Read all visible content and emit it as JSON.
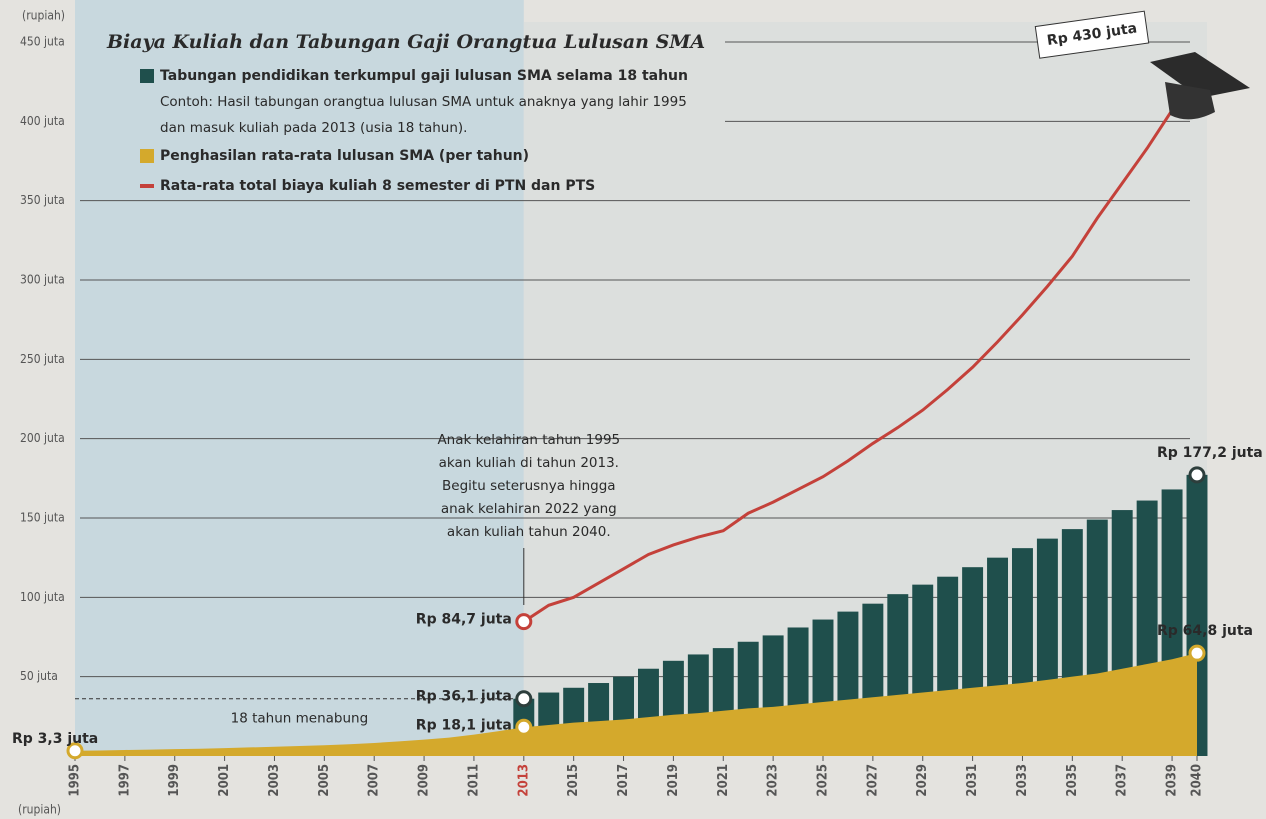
{
  "chart_data": {
    "type": "bar-area-line",
    "title": "Biaya Kuliah dan Tabungan Gaji Orangtua Lulusan SMA",
    "ylabel": "(rupiah)",
    "legend_note": [
      "Contoh: Hasil tabungan orangtua lulusan SMA untuk anaknya yang lahir 1995",
      "dan masuk kuliah pada 2013 (usia 18 tahun)."
    ],
    "x": [
      1995,
      1996,
      1997,
      1998,
      1999,
      2000,
      2001,
      2002,
      2003,
      2004,
      2005,
      2006,
      2007,
      2008,
      2009,
      2010,
      2011,
      2012,
      2013,
      2014,
      2015,
      2016,
      2017,
      2018,
      2019,
      2020,
      2021,
      2022,
      2023,
      2024,
      2025,
      2026,
      2027,
      2028,
      2029,
      2030,
      2031,
      2032,
      2033,
      2034,
      2035,
      2036,
      2037,
      2038,
      2039,
      2040
    ],
    "xlim": [
      1995,
      2040
    ],
    "xticks": [
      1995,
      1997,
      1999,
      2001,
      2003,
      2005,
      2007,
      2009,
      2011,
      2013,
      2015,
      2017,
      2019,
      2021,
      2023,
      2025,
      2027,
      2029,
      2031,
      2033,
      2035,
      2037,
      2039,
      2040
    ],
    "ylim": [
      0,
      450
    ],
    "yticks": [
      {
        "value": 50,
        "label": "50 juta"
      },
      {
        "value": 100,
        "label": "100 juta"
      },
      {
        "value": 150,
        "label": "150 juta"
      },
      {
        "value": 200,
        "label": "200 juta"
      },
      {
        "value": 250,
        "label": "250 juta"
      },
      {
        "value": 300,
        "label": "300 juta"
      },
      {
        "value": 350,
        "label": "350 juta"
      },
      {
        "value": 400,
        "label": "400 juta"
      },
      {
        "value": 450,
        "label": "450 juta"
      }
    ],
    "grid": true,
    "series": [
      {
        "name": "Tabungan pendidikan terkumpul gaji lulusan SMA selama 18 tahun",
        "kind": "bar",
        "color": "#1f4f4c",
        "values": [
          null,
          null,
          null,
          null,
          null,
          null,
          null,
          null,
          null,
          null,
          null,
          null,
          null,
          null,
          null,
          null,
          null,
          null,
          36.1,
          40,
          43,
          46,
          50,
          55,
          60,
          64,
          68,
          72,
          76,
          81,
          86,
          91,
          96,
          102,
          108,
          113,
          119,
          125,
          131,
          137,
          143,
          149,
          155,
          161,
          168,
          177.2
        ],
        "value_labels": [
          null,
          null,
          null,
          null,
          null,
          null,
          null,
          null,
          null,
          null,
          null,
          null,
          null,
          null,
          null,
          null,
          null,
          null,
          "Rp 36,1 juta",
          null,
          null,
          null,
          null,
          null,
          null,
          null,
          null,
          null,
          null,
          null,
          null,
          null,
          null,
          null,
          null,
          null,
          null,
          null,
          null,
          null,
          null,
          null,
          null,
          null,
          null,
          "Rp 177,2 juta"
        ]
      },
      {
        "name": "Penghasilan rata-rata lulusan SMA (per tahun)",
        "kind": "area",
        "color": "#d4a92c",
        "values": [
          3.3,
          3.5,
          3.8,
          4,
          4.3,
          4.6,
          5,
          5.4,
          5.8,
          6.3,
          6.8,
          7.4,
          8.2,
          9.2,
          10.3,
          11.6,
          13.5,
          15.7,
          18.1,
          19.5,
          21,
          22,
          23,
          24.5,
          26,
          27,
          28.5,
          30,
          31,
          32.5,
          34,
          35.5,
          37,
          38.5,
          40,
          41.5,
          43,
          44.5,
          46,
          48,
          50,
          52,
          55,
          58,
          61,
          64.8
        ],
        "value_labels": [
          "Rp 3,3 juta",
          null,
          null,
          null,
          null,
          null,
          null,
          null,
          null,
          null,
          null,
          null,
          null,
          null,
          null,
          null,
          null,
          null,
          "Rp 18,1 juta",
          null,
          null,
          null,
          null,
          null,
          null,
          null,
          null,
          null,
          null,
          null,
          null,
          null,
          null,
          null,
          null,
          null,
          null,
          null,
          null,
          null,
          null,
          null,
          null,
          null,
          null,
          "Rp 64,8 juta"
        ]
      },
      {
        "name": "Rata-rata total biaya kuliah 8 semester di PTN dan PTS",
        "kind": "line",
        "color": "#c4413a",
        "values": [
          null,
          null,
          null,
          null,
          null,
          null,
          null,
          null,
          null,
          null,
          null,
          null,
          null,
          null,
          null,
          null,
          null,
          null,
          84.7,
          95,
          100,
          109,
          118,
          127,
          133,
          138,
          142,
          153,
          160,
          168,
          176,
          186,
          197,
          207,
          218,
          231,
          245,
          261,
          278,
          296,
          315,
          339,
          361,
          383,
          407,
          430
        ],
        "value_labels": [
          null,
          null,
          null,
          null,
          null,
          null,
          null,
          null,
          null,
          null,
          null,
          null,
          null,
          null,
          null,
          null,
          null,
          null,
          "Rp 84,7 juta",
          null,
          null,
          null,
          null,
          null,
          null,
          null,
          null,
          null,
          null,
          null,
          null,
          null,
          null,
          null,
          null,
          null,
          null,
          null,
          null,
          null,
          null,
          null,
          null,
          null,
          null,
          "Rp 430 juta"
        ]
      }
    ],
    "annotations": [
      "18 tahun menabung"
    ],
    "note": [
      "Anak kelahiran tahun 1995",
      "akan kuliah di tahun 2013.",
      "Begitu seterusnya hingga",
      "anak kelahiran 2022 yang",
      "akan kuliah tahun 2040."
    ]
  }
}
